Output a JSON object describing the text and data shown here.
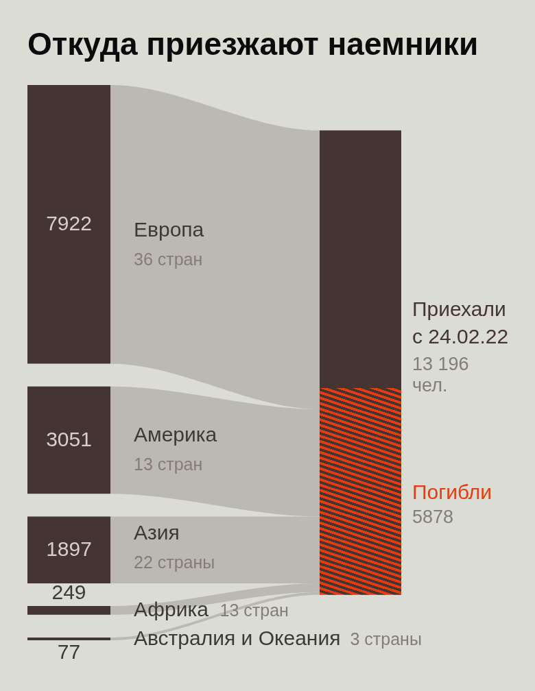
{
  "chart_data": {
    "type": "other",
    "title": "Откуда приезжают наемники",
    "categories": [
      "Европа",
      "Америка",
      "Азия",
      "Африка",
      "Австралия и Океания",
      "Приехали с 24.02.22",
      "Погибли"
    ],
    "values": [
      7922,
      3051,
      1897,
      249,
      77,
      13196,
      5878
    ],
    "value_labels": [
      "7922",
      "3051",
      "1897",
      "249",
      "77",
      "13 196 чел.",
      "5878"
    ],
    "annotations": [
      "36 стран",
      "13 стран",
      "22 страны",
      "13 стран",
      "3 страны"
    ]
  }
}
